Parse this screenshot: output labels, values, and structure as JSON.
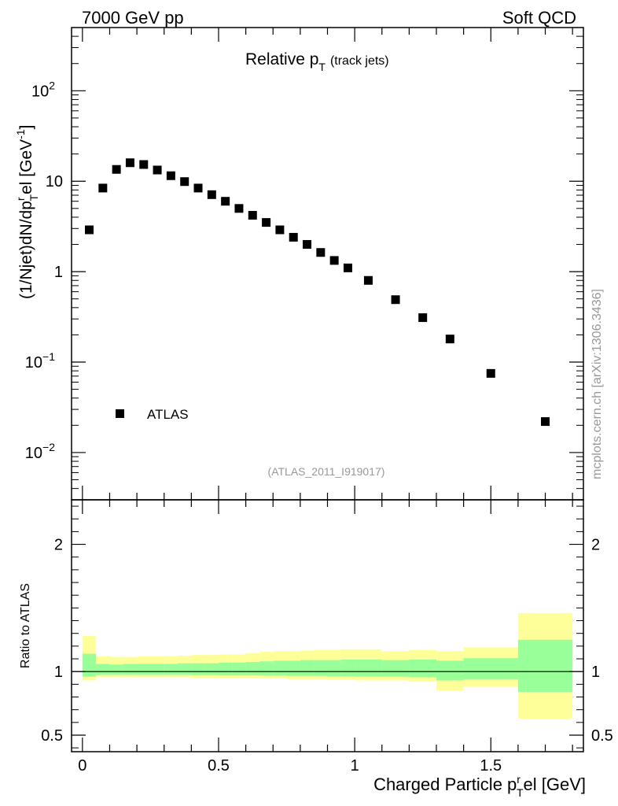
{
  "header": {
    "left": "7000 GeV pp",
    "right": "Soft QCD"
  },
  "side_label": "mcplots.cern.ch [arXiv:1306.3436]",
  "chart_data": [
    {
      "type": "scatter",
      "yscale": "log",
      "title_main": "Relative p",
      "title_sub": "T",
      "title_paren": "(track jets)",
      "ylabel_prefix": "(1/Njet)dN/dp",
      "ylabel_sup": "r",
      "ylabel_sub": "T",
      "ylabel_suffix": "el [GeV",
      "ylabel_sup2": "-1",
      "ylabel_end": "]",
      "xlim": [
        -0.04,
        1.84
      ],
      "ylim": [
        0.003,
        500
      ],
      "y_ticks": [
        {
          "value": 100,
          "base": "10",
          "exp": "2"
        },
        {
          "value": 10,
          "base": "10",
          "exp": ""
        },
        {
          "value": 1,
          "base": "1",
          "exp": ""
        },
        {
          "value": 0.1,
          "base": "10",
          "exp": "−1"
        },
        {
          "value": 0.01,
          "base": "10",
          "exp": "−2"
        }
      ],
      "legend": {
        "label": "ATLAS",
        "position": "bottom-left"
      },
      "watermark": "(ATLAS_2011_I919017)",
      "series": [
        {
          "name": "ATLAS",
          "x": [
            0.025,
            0.075,
            0.125,
            0.175,
            0.225,
            0.275,
            0.325,
            0.375,
            0.425,
            0.475,
            0.525,
            0.575,
            0.625,
            0.675,
            0.725,
            0.775,
            0.825,
            0.875,
            0.925,
            0.975,
            1.05,
            1.15,
            1.25,
            1.35,
            1.5,
            1.7
          ],
          "y": [
            2.9,
            8.4,
            13.5,
            16.0,
            15.3,
            13.3,
            11.5,
            9.9,
            8.4,
            7.1,
            6.0,
            5.0,
            4.2,
            3.5,
            2.9,
            2.4,
            2.0,
            1.63,
            1.33,
            1.1,
            0.8,
            0.49,
            0.31,
            0.18,
            0.075,
            0.022
          ]
        }
      ]
    },
    {
      "type": "area",
      "ylabel": "Ratio to ATLAS",
      "xlabel_prefix": "Charged Particle p",
      "xlabel_sup": "r",
      "xlabel_sub": "T",
      "xlabel_suffix": "el [GeV]",
      "xlim": [
        -0.04,
        1.84
      ],
      "ylim": [
        0.37,
        2.35
      ],
      "y_ticks": [
        {
          "value": 2,
          "label": "2"
        },
        {
          "value": 1,
          "label": "1"
        },
        {
          "value": 0.5,
          "label": "0.5"
        }
      ],
      "x_ticks": [
        {
          "value": 0,
          "label": "0"
        },
        {
          "value": 0.5,
          "label": "0.5"
        },
        {
          "value": 1,
          "label": "1"
        },
        {
          "value": 1.5,
          "label": "1.5"
        }
      ],
      "reference_line": 1,
      "bands": {
        "edges": [
          0,
          0.05,
          0.1,
          0.15,
          0.2,
          0.25,
          0.3,
          0.35,
          0.4,
          0.45,
          0.5,
          0.55,
          0.6,
          0.65,
          0.7,
          0.75,
          0.8,
          0.85,
          0.9,
          0.95,
          1.0,
          1.1,
          1.2,
          1.3,
          1.4,
          1.6,
          1.8
        ],
        "yellow_lo": [
          0.93,
          0.955,
          0.955,
          0.955,
          0.955,
          0.955,
          0.955,
          0.955,
          0.95,
          0.95,
          0.95,
          0.95,
          0.95,
          0.945,
          0.945,
          0.94,
          0.94,
          0.94,
          0.935,
          0.935,
          0.93,
          0.93,
          0.92,
          0.85,
          0.88,
          0.63
        ],
        "yellow_hi": [
          1.28,
          1.12,
          1.115,
          1.115,
          1.12,
          1.12,
          1.12,
          1.125,
          1.13,
          1.13,
          1.135,
          1.135,
          1.145,
          1.155,
          1.16,
          1.16,
          1.165,
          1.17,
          1.17,
          1.175,
          1.175,
          1.16,
          1.17,
          1.16,
          1.19,
          1.46
        ],
        "green_lo": [
          0.96,
          0.975,
          0.975,
          0.975,
          0.975,
          0.975,
          0.975,
          0.975,
          0.972,
          0.972,
          0.97,
          0.97,
          0.97,
          0.968,
          0.968,
          0.966,
          0.966,
          0.965,
          0.963,
          0.963,
          0.96,
          0.96,
          0.955,
          0.93,
          0.94,
          0.84
        ],
        "green_hi": [
          1.14,
          1.06,
          1.055,
          1.06,
          1.06,
          1.06,
          1.06,
          1.065,
          1.065,
          1.065,
          1.07,
          1.07,
          1.075,
          1.08,
          1.085,
          1.085,
          1.09,
          1.09,
          1.09,
          1.095,
          1.095,
          1.09,
          1.095,
          1.085,
          1.105,
          1.25
        ]
      }
    }
  ]
}
